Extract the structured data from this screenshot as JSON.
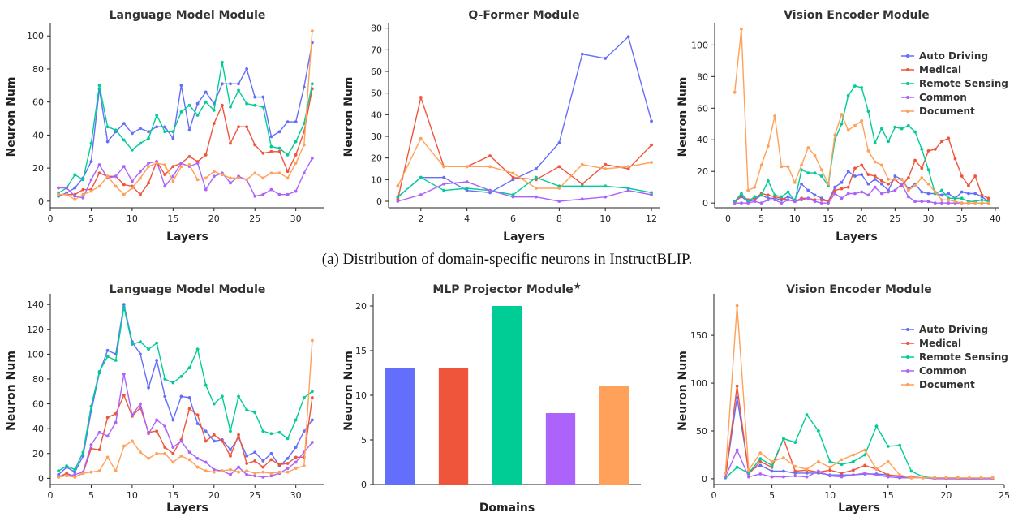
{
  "figure": {
    "caption_a": "(a) Distribution of domain-specific neurons in InstructBLIP.",
    "series_names": [
      "Auto Driving",
      "Medical",
      "Remote Sensing",
      "Common",
      "Document"
    ],
    "colors": {
      "auto_driving": "#636efa",
      "medical": "#ef553b",
      "remote_sensing": "#00cc96",
      "common": "#ab63fa",
      "document": "#ffa15a"
    }
  },
  "chart_data": [
    {
      "id": "ib_lm",
      "type": "line",
      "title": "Language Model Module",
      "xlabel": "Layers",
      "ylabel": "Neuron Num",
      "xlim": [
        0,
        33.5
      ],
      "ylim": [
        -4,
        106
      ],
      "xticks": [
        0,
        5,
        10,
        15,
        20,
        25,
        30
      ],
      "yticks": [
        0,
        20,
        40,
        60,
        80,
        100
      ],
      "x": [
        1,
        2,
        3,
        4,
        5,
        6,
        7,
        8,
        9,
        10,
        11,
        12,
        13,
        14,
        15,
        16,
        17,
        18,
        19,
        20,
        21,
        22,
        23,
        24,
        25,
        26,
        27,
        28,
        29,
        30,
        31,
        32
      ],
      "series": [
        {
          "name": "Auto Driving",
          "values": [
            3,
            5,
            8,
            14,
            24,
            68,
            36,
            42,
            47,
            41,
            44,
            42,
            45,
            45,
            38,
            70,
            43,
            59,
            66,
            59,
            71,
            71,
            71,
            80,
            63,
            63,
            39,
            42,
            48,
            48,
            69,
            96
          ]
        },
        {
          "name": "Medical",
          "values": [
            4,
            4,
            4,
            7,
            7,
            17,
            15,
            15,
            10,
            9,
            4,
            11,
            24,
            16,
            21,
            23,
            27,
            24,
            28,
            47,
            58,
            35,
            45,
            45,
            34,
            29,
            30,
            30,
            18,
            28,
            42,
            68
          ]
        },
        {
          "name": "Remote Sensing",
          "values": [
            5,
            8,
            16,
            13,
            35,
            70,
            45,
            43,
            37,
            31,
            35,
            38,
            52,
            42,
            42,
            54,
            58,
            52,
            60,
            55,
            84,
            57,
            67,
            59,
            58,
            57,
            33,
            32,
            28,
            36,
            47,
            71
          ]
        },
        {
          "name": "Common",
          "values": [
            8,
            8,
            3,
            2,
            13,
            22,
            14,
            15,
            21,
            12,
            18,
            23,
            24,
            9,
            15,
            23,
            21,
            23,
            7,
            15,
            17,
            11,
            15,
            13,
            3,
            4,
            7,
            4,
            4,
            6,
            17,
            26
          ]
        },
        {
          "name": "Document",
          "values": [
            4,
            4,
            1,
            4,
            6,
            9,
            15,
            9,
            4,
            8,
            14,
            21,
            23,
            22,
            12,
            21,
            22,
            13,
            14,
            18,
            16,
            14,
            14,
            13,
            17,
            14,
            17,
            17,
            14,
            23,
            34,
            103
          ]
        }
      ]
    },
    {
      "id": "ib_qf",
      "type": "line",
      "title": "Q-Former Module",
      "xlabel": "Layers",
      "ylabel": "Neuron Num",
      "xlim": [
        0.6,
        12.35
      ],
      "ylim": [
        -3,
        81
      ],
      "xticks": [
        2,
        4,
        6,
        8,
        10,
        12
      ],
      "yticks": [
        0,
        10,
        20,
        30,
        40,
        50,
        60,
        70,
        80
      ],
      "x": [
        1,
        2,
        3,
        4,
        5,
        6,
        7,
        8,
        9,
        10,
        11,
        12
      ],
      "series": [
        {
          "name": "Auto Driving",
          "values": [
            2,
            11,
            11,
            5,
            4,
            10,
            15,
            27,
            68,
            66,
            76,
            37
          ]
        },
        {
          "name": "Medical",
          "values": [
            1,
            48,
            16,
            16,
            21,
            11,
            10,
            16,
            8,
            17,
            15,
            26
          ]
        },
        {
          "name": "Remote Sensing",
          "values": [
            2,
            11,
            5,
            6,
            5,
            3,
            11,
            7,
            7,
            7,
            6,
            4
          ]
        },
        {
          "name": "Common",
          "values": [
            0,
            3,
            8,
            9,
            5,
            2,
            2,
            0,
            1,
            2,
            5,
            3
          ]
        },
        {
          "name": "Document",
          "values": [
            7,
            29,
            16,
            16,
            16,
            13,
            6,
            6,
            17,
            15,
            16,
            18
          ]
        }
      ]
    },
    {
      "id": "ib_ve",
      "type": "line",
      "title": "Vision Encoder Module",
      "xlabel": "Layers",
      "ylabel": "Neuron Num",
      "xlim": [
        -2,
        40.5
      ],
      "ylim": [
        -3,
        112
      ],
      "xticks": [
        0,
        5,
        10,
        15,
        20,
        25,
        30,
        35,
        40
      ],
      "yticks": [
        0,
        20,
        40,
        60,
        80,
        100
      ],
      "x": [
        1,
        2,
        3,
        4,
        5,
        6,
        7,
        8,
        9,
        10,
        11,
        12,
        13,
        14,
        15,
        16,
        17,
        18,
        19,
        20,
        21,
        22,
        23,
        24,
        25,
        26,
        27,
        28,
        29,
        30,
        31,
        32,
        33,
        34,
        35,
        36,
        37,
        38,
        39
      ],
      "series": [
        {
          "name": "Auto Driving",
          "values": [
            1,
            4,
            1,
            2,
            5,
            3,
            3,
            2,
            4,
            2,
            12,
            8,
            5,
            3,
            1,
            10,
            13,
            20,
            17,
            18,
            12,
            15,
            12,
            8,
            17,
            15,
            9,
            12,
            7,
            6,
            6,
            5,
            6,
            3,
            7,
            6,
            6,
            4,
            1
          ]
        },
        {
          "name": "Medical",
          "values": [
            0,
            5,
            2,
            3,
            6,
            5,
            4,
            3,
            2,
            1,
            3,
            3,
            2,
            2,
            1,
            8,
            9,
            10,
            22,
            24,
            18,
            17,
            14,
            12,
            15,
            11,
            16,
            27,
            22,
            33,
            34,
            39,
            41,
            28,
            17,
            11,
            17,
            5,
            3
          ]
        },
        {
          "name": "Remote Sensing",
          "values": [
            1,
            6,
            1,
            4,
            5,
            14,
            5,
            4,
            7,
            1,
            21,
            19,
            19,
            17,
            11,
            40,
            50,
            68,
            74,
            73,
            58,
            38,
            47,
            39,
            48,
            47,
            49,
            45,
            34,
            21,
            6,
            8,
            3,
            3,
            3,
            1,
            1,
            2,
            1
          ]
        },
        {
          "name": "Common",
          "values": [
            0,
            0,
            0,
            1,
            0,
            2,
            2,
            0,
            2,
            1,
            2,
            3,
            1,
            0,
            0,
            6,
            3,
            6,
            6,
            7,
            5,
            10,
            6,
            7,
            8,
            12,
            4,
            1,
            1,
            1,
            0,
            0,
            0,
            0,
            0,
            0,
            0,
            0,
            0
          ]
        },
        {
          "name": "Document",
          "values": [
            70,
            110,
            8,
            10,
            24,
            36,
            55,
            23,
            23,
            13,
            24,
            35,
            30,
            21,
            12,
            43,
            56,
            46,
            49,
            52,
            33,
            26,
            24,
            15,
            15,
            15,
            8,
            11,
            16,
            12,
            7,
            2,
            2,
            1,
            0,
            0,
            0,
            0,
            0
          ]
        }
      ]
    },
    {
      "id": "llava_lm",
      "type": "line",
      "title": "Language Model Module",
      "xlabel": "Layers",
      "ylabel": "Neuron Num",
      "xlim": [
        0,
        33.5
      ],
      "ylim": [
        -5,
        146
      ],
      "xticks": [
        0,
        5,
        10,
        15,
        20,
        25,
        30
      ],
      "yticks": [
        0,
        20,
        40,
        60,
        80,
        100,
        120,
        140
      ],
      "x": [
        1,
        2,
        3,
        4,
        5,
        6,
        7,
        8,
        9,
        10,
        11,
        12,
        13,
        14,
        15,
        16,
        17,
        18,
        19,
        20,
        21,
        22,
        23,
        24,
        25,
        26,
        27,
        28,
        29,
        30,
        31,
        32
      ],
      "series": [
        {
          "name": "Auto Driving",
          "values": [
            3,
            9,
            5,
            18,
            54,
            85,
            103,
            100,
            140,
            110,
            100,
            73,
            95,
            66,
            47,
            66,
            65,
            44,
            38,
            30,
            31,
            23,
            33,
            18,
            21,
            14,
            20,
            10,
            16,
            25,
            38,
            47
          ]
        },
        {
          "name": "Medical",
          "values": [
            1,
            4,
            1,
            4,
            24,
            23,
            49,
            52,
            67,
            50,
            57,
            37,
            38,
            25,
            20,
            31,
            56,
            51,
            30,
            35,
            30,
            18,
            35,
            12,
            14,
            9,
            15,
            11,
            12,
            17,
            17,
            65
          ]
        },
        {
          "name": "Remote Sensing",
          "values": [
            6,
            10,
            7,
            21,
            58,
            86,
            98,
            95,
            138,
            108,
            110,
            104,
            109,
            80,
            77,
            82,
            89,
            104,
            75,
            60,
            66,
            38,
            66,
            55,
            53,
            38,
            36,
            37,
            32,
            47,
            65,
            70
          ]
        },
        {
          "name": "Common",
          "values": [
            2,
            2,
            3,
            5,
            27,
            37,
            34,
            45,
            84,
            51,
            60,
            36,
            47,
            42,
            25,
            30,
            21,
            16,
            13,
            7,
            6,
            3,
            9,
            3,
            2,
            1,
            2,
            4,
            8,
            13,
            21,
            29
          ]
        },
        {
          "name": "Document",
          "values": [
            1,
            2,
            1,
            4,
            5,
            6,
            17,
            6,
            26,
            30,
            21,
            16,
            20,
            20,
            13,
            18,
            15,
            9,
            6,
            5,
            6,
            7,
            5,
            6,
            4,
            5,
            4,
            5,
            5,
            8,
            10,
            111
          ]
        }
      ]
    },
    {
      "id": "llava_mlp",
      "type": "bar",
      "title": "MLP Projector Module",
      "title_mark": "★",
      "xlabel": "Domains",
      "ylabel": "Neuron Num",
      "categories": [
        "Auto Driving",
        "Medical",
        "Remote Sensing",
        "Common",
        "Document"
      ],
      "values": [
        13,
        13,
        20,
        8,
        11
      ],
      "ylim": [
        0,
        21
      ],
      "yticks": [
        0,
        5,
        10,
        15,
        20
      ]
    },
    {
      "id": "llava_ve",
      "type": "line",
      "title": "Vision Encoder Module",
      "xlabel": "Layers",
      "ylabel": "Neuron Num",
      "xlim": [
        0,
        25
      ],
      "ylim": [
        -6,
        190
      ],
      "xticks": [
        0,
        5,
        10,
        15,
        20,
        25
      ],
      "yticks": [
        0,
        50,
        100,
        150
      ],
      "x": [
        1,
        2,
        3,
        4,
        5,
        6,
        7,
        8,
        9,
        10,
        11,
        12,
        13,
        14,
        15,
        16,
        17,
        18,
        19,
        20,
        21,
        22,
        23,
        24
      ],
      "series": [
        {
          "name": "Auto Driving",
          "values": [
            2,
            85,
            8,
            14,
            8,
            8,
            6,
            6,
            6,
            4,
            4,
            4,
            5,
            5,
            4,
            2,
            1,
            1,
            1,
            0,
            0,
            0,
            0,
            0
          ]
        },
        {
          "name": "Medical",
          "values": [
            1,
            97,
            5,
            18,
            12,
            42,
            8,
            9,
            7,
            9,
            6,
            9,
            14,
            10,
            4,
            3,
            2,
            1,
            1,
            1,
            0,
            0,
            0,
            1
          ]
        },
        {
          "name": "Remote Sensing",
          "values": [
            1,
            12,
            6,
            21,
            14,
            42,
            38,
            67,
            50,
            18,
            15,
            18,
            25,
            55,
            34,
            35,
            8,
            2,
            1,
            1,
            1,
            0,
            0,
            1
          ]
        },
        {
          "name": "Common",
          "values": [
            2,
            30,
            2,
            5,
            2,
            2,
            3,
            2,
            8,
            3,
            2,
            4,
            6,
            4,
            2,
            1,
            1,
            1,
            0,
            0,
            0,
            0,
            0,
            0
          ]
        },
        {
          "name": "Document",
          "values": [
            6,
            181,
            9,
            27,
            18,
            22,
            13,
            10,
            18,
            12,
            20,
            25,
            30,
            10,
            18,
            4,
            1,
            1,
            1,
            1,
            1,
            1,
            1,
            1
          ]
        }
      ]
    }
  ]
}
